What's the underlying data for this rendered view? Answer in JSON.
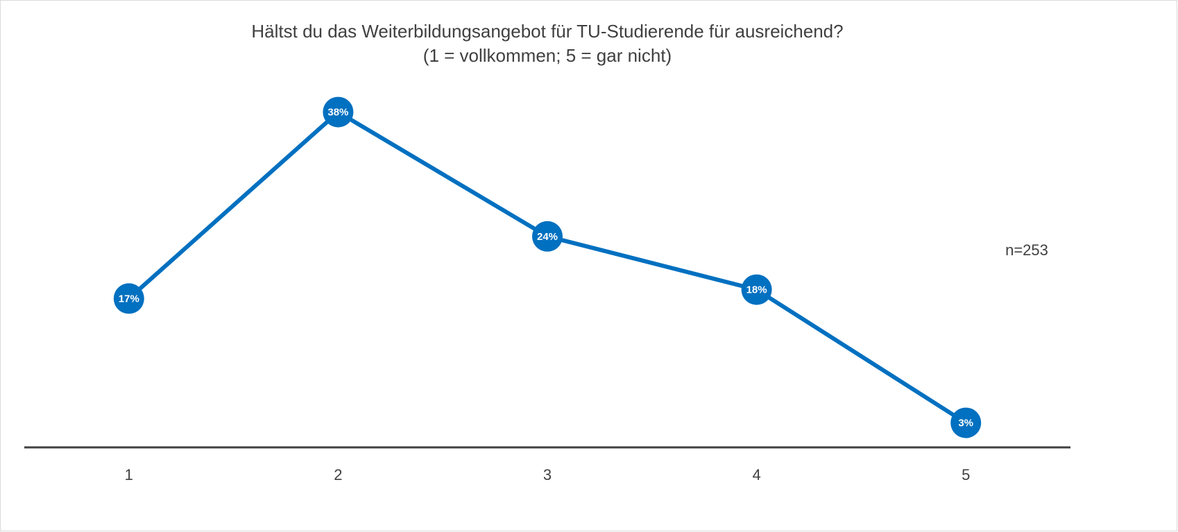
{
  "chart_data": {
    "type": "line",
    "title": "Hältst du das Weiterbildungsangebot für TU-Studierende für ausreichend?",
    "subtitle": "(1 = vollkommen; 5 = gar nicht)",
    "annotation": "n=253",
    "categories": [
      "1",
      "2",
      "3",
      "4",
      "5"
    ],
    "values": [
      17,
      38,
      24,
      18,
      3
    ],
    "value_labels": [
      "17%",
      "38%",
      "24%",
      "18%",
      "3%"
    ],
    "color": "#0070c0",
    "ylim": [
      0,
      40
    ]
  }
}
